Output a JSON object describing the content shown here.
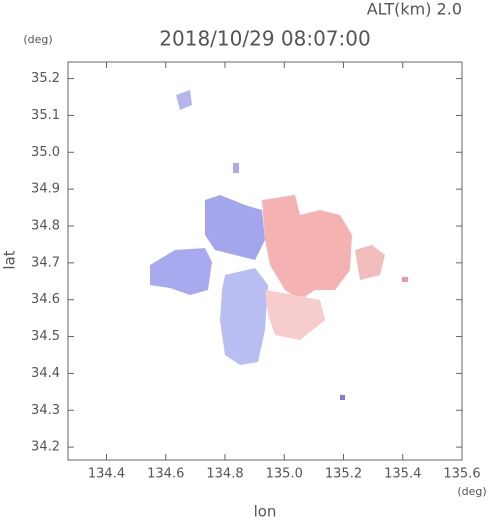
{
  "chart_data": {
    "type": "image",
    "title": "2018/10/29 08:07:00",
    "subtitle": "ALT(km) 2.0",
    "x_label": "lon",
    "y_label": "lat",
    "x_unit": "(deg)",
    "y_unit": "(deg)",
    "xlim": [
      134.27,
      135.6
    ],
    "ylim": [
      34.165,
      35.245
    ],
    "xticks": [
      134.4,
      134.6,
      134.8,
      {
        "value": 135.0,
        "label": "135.0"
      },
      135.2,
      135.4,
      135.6
    ],
    "yticks": [
      34.2,
      34.3,
      34.4,
      34.5,
      34.6,
      34.7,
      34.8,
      34.9,
      {
        "value": 35.0,
        "label": "35.0"
      },
      35.1,
      35.2
    ]
  }
}
